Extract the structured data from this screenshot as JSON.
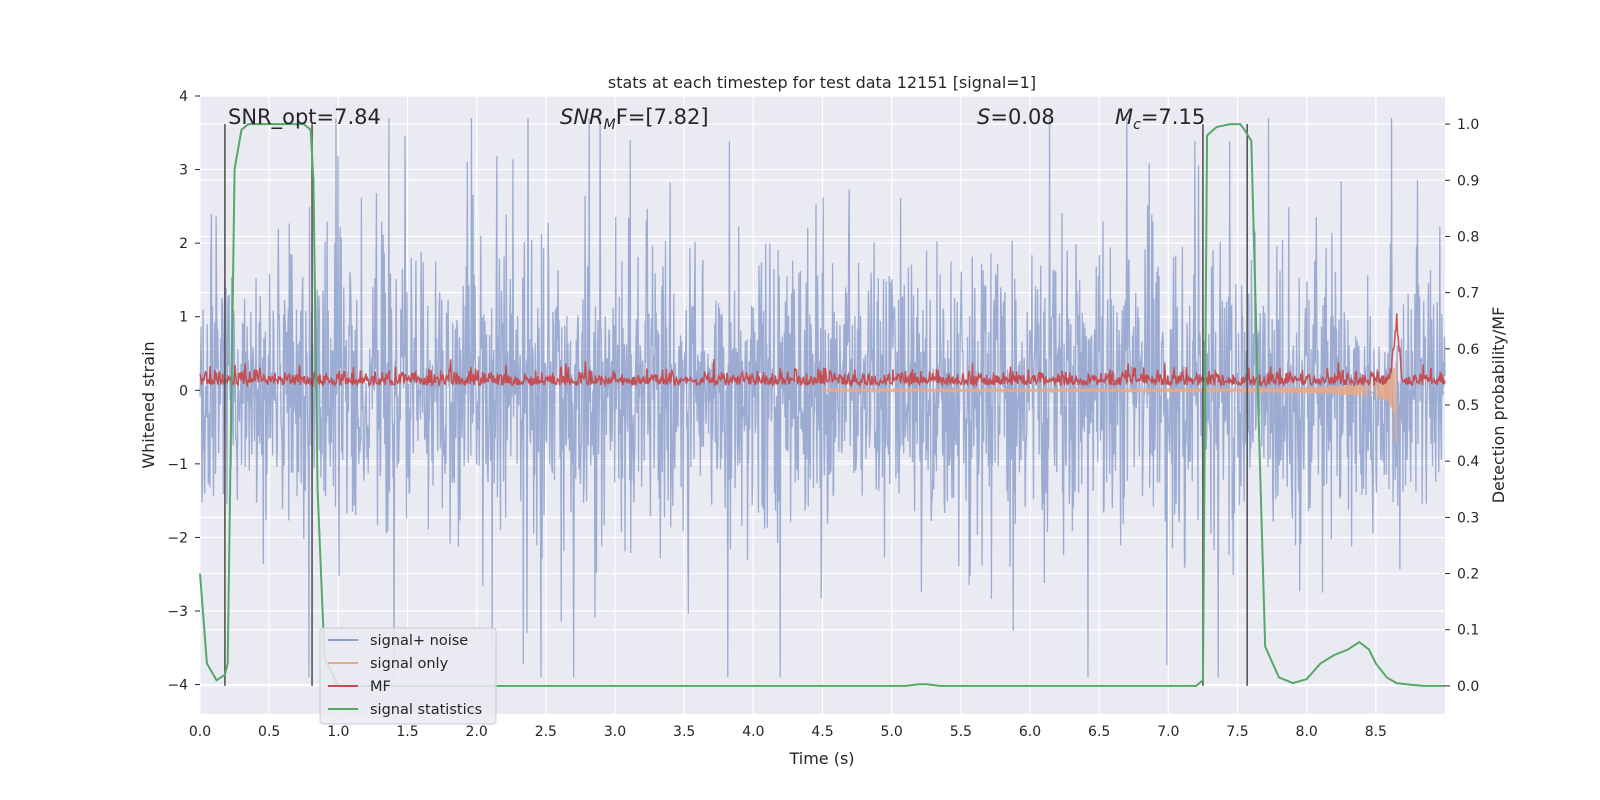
{
  "chart_data": {
    "type": "line",
    "title": "stats at each timestep for test data 12151 [signal=1]",
    "xlabel": "Time (s)",
    "ylabel_left": "Whitened strain",
    "ylabel_right": "Detection probability/MF",
    "xlim": [
      0.0,
      9.0
    ],
    "ylim_left": [
      -4.4,
      4.0
    ],
    "ylim_right": [
      -0.05,
      1.05
    ],
    "x_ticks": [
      "0.0",
      "0.5",
      "1.0",
      "1.5",
      "2.0",
      "2.5",
      "3.0",
      "3.5",
      "4.0",
      "4.5",
      "5.0",
      "5.5",
      "6.0",
      "6.5",
      "7.0",
      "7.5",
      "8.0",
      "8.5"
    ],
    "y_ticks_left": [
      "4",
      "3",
      "2",
      "1",
      "0",
      "−1",
      "−2",
      "−3",
      "−4"
    ],
    "y_ticks_right": [
      "1.0",
      "0.9",
      "0.8",
      "0.7",
      "0.6",
      "0.5",
      "0.4",
      "0.3",
      "0.2",
      "0.1",
      "0.0"
    ],
    "annotations": {
      "snr_opt": "SNR_opt=7.84",
      "snr_mf_main": "SNR",
      "snr_mf_sub": "M",
      "snr_mf_rest": "F=[7.82]",
      "s_main": "S",
      "s_rest": "=0.08",
      "mc_main": "M",
      "mc_sub": "c",
      "mc_rest": "=7.15"
    },
    "series": [
      {
        "name": "signal+ noise",
        "color": "#8da0cb",
        "axis": "left",
        "envelope_rms": 0.9,
        "peak_range": [
          -3.9,
          3.7
        ]
      },
      {
        "name": "signal only",
        "color": "#e8a88a",
        "axis": "left",
        "chirp_end_time": 8.65,
        "chirp_peak_amplitude": 1.1
      },
      {
        "name": "MF",
        "color": "#c44e52",
        "axis": "right",
        "baseline": 0.54,
        "values_note": "MF around 0.52-0.58 with spike to 0.65 at t=8.65"
      },
      {
        "name": "signal statistics",
        "color": "#55a868",
        "axis": "right",
        "x": [
          0.0,
          0.05,
          0.12,
          0.18,
          0.2,
          0.25,
          0.3,
          0.35,
          0.4,
          0.5,
          0.6,
          0.7,
          0.75,
          0.8,
          0.82,
          0.85,
          0.9,
          1.0,
          2.0,
          3.0,
          4.0,
          5.0,
          5.1,
          5.2,
          5.25,
          5.35,
          5.5,
          6.0,
          7.0,
          7.1,
          7.2,
          7.25,
          7.28,
          7.35,
          7.45,
          7.52,
          7.55,
          7.6,
          7.65,
          7.7,
          7.8,
          7.9,
          8.0,
          8.1,
          8.2,
          8.3,
          8.38,
          8.45,
          8.5,
          8.58,
          8.65,
          8.75,
          8.85,
          9.0
        ],
        "y": [
          0.2,
          0.04,
          0.01,
          0.02,
          0.04,
          0.92,
          0.99,
          1.0,
          1.0,
          1.0,
          1.0,
          1.0,
          1.0,
          0.99,
          0.9,
          0.35,
          0.05,
          0.0,
          0.0,
          0.0,
          0.0,
          0.0,
          0.0,
          0.003,
          0.003,
          0.0,
          0.0,
          0.0,
          0.0,
          0.0,
          0.0,
          0.01,
          0.98,
          0.995,
          1.0,
          1.0,
          0.99,
          0.97,
          0.5,
          0.07,
          0.015,
          0.005,
          0.012,
          0.04,
          0.055,
          0.065,
          0.078,
          0.065,
          0.04,
          0.015,
          0.005,
          0.002,
          0.0,
          0.0
        ]
      }
    ],
    "vertical_lines": [
      0.18,
      0.81,
      7.25,
      7.57
    ],
    "legend": {
      "position": "lower-left",
      "entries": [
        "signal+ noise",
        "signal only",
        "MF",
        "signal statistics"
      ]
    }
  }
}
